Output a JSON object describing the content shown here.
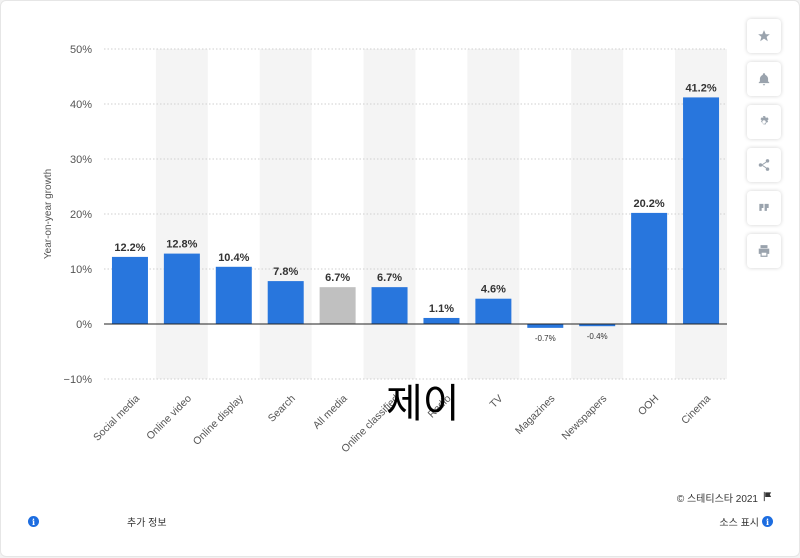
{
  "chart_data": {
    "type": "bar",
    "ylabel": "Year-on-year growth",
    "ylim": [
      -10,
      50
    ],
    "yticks": [
      50,
      40,
      30,
      20,
      10,
      0,
      -10
    ],
    "ytick_labels": [
      "50%",
      "40%",
      "30%",
      "20%",
      "10%",
      "0%",
      "−10%"
    ],
    "categories": [
      "Social media",
      "Online video",
      "Online display",
      "Search",
      "All media",
      "Online classified",
      "Radio",
      "TV",
      "Magazines",
      "Newspapers",
      "OOH",
      "Cinema"
    ],
    "values": [
      12.2,
      12.8,
      10.4,
      7.8,
      6.7,
      6.7,
      1.1,
      4.6,
      -0.7,
      -0.4,
      20.2,
      41.2
    ],
    "data_labels": [
      "12.2%",
      "12.8%",
      "10.4%",
      "7.8%",
      "6.7%",
      "6.7%",
      "1.1%",
      "4.6%",
      "-0.7%",
      "-0.4%",
      "20.2%",
      "41.2%"
    ],
    "bar_colors": [
      "#2876dd",
      "#2876dd",
      "#2876dd",
      "#2876dd",
      "#c0c0c0",
      "#2876dd",
      "#2876dd",
      "#2876dd",
      "#2876dd",
      "#2876dd",
      "#2876dd",
      "#2876dd"
    ],
    "grid": true,
    "legend": "none"
  },
  "colors": {
    "primary_bar": "#2876dd",
    "highlight_bar": "#c0c0c0",
    "band": "#f4f4f4"
  },
  "sidebar": {
    "buttons": [
      {
        "icon": "star-icon"
      },
      {
        "icon": "bell-icon"
      },
      {
        "icon": "gear-icon"
      },
      {
        "icon": "share-icon"
      },
      {
        "icon": "quote-icon"
      },
      {
        "icon": "print-icon"
      }
    ]
  },
  "overlay": {
    "text": "제이"
  },
  "footer": {
    "copyright": "© 스테티스타 2021",
    "additional_info": "추가 정보",
    "show_source": "소스 표시"
  }
}
